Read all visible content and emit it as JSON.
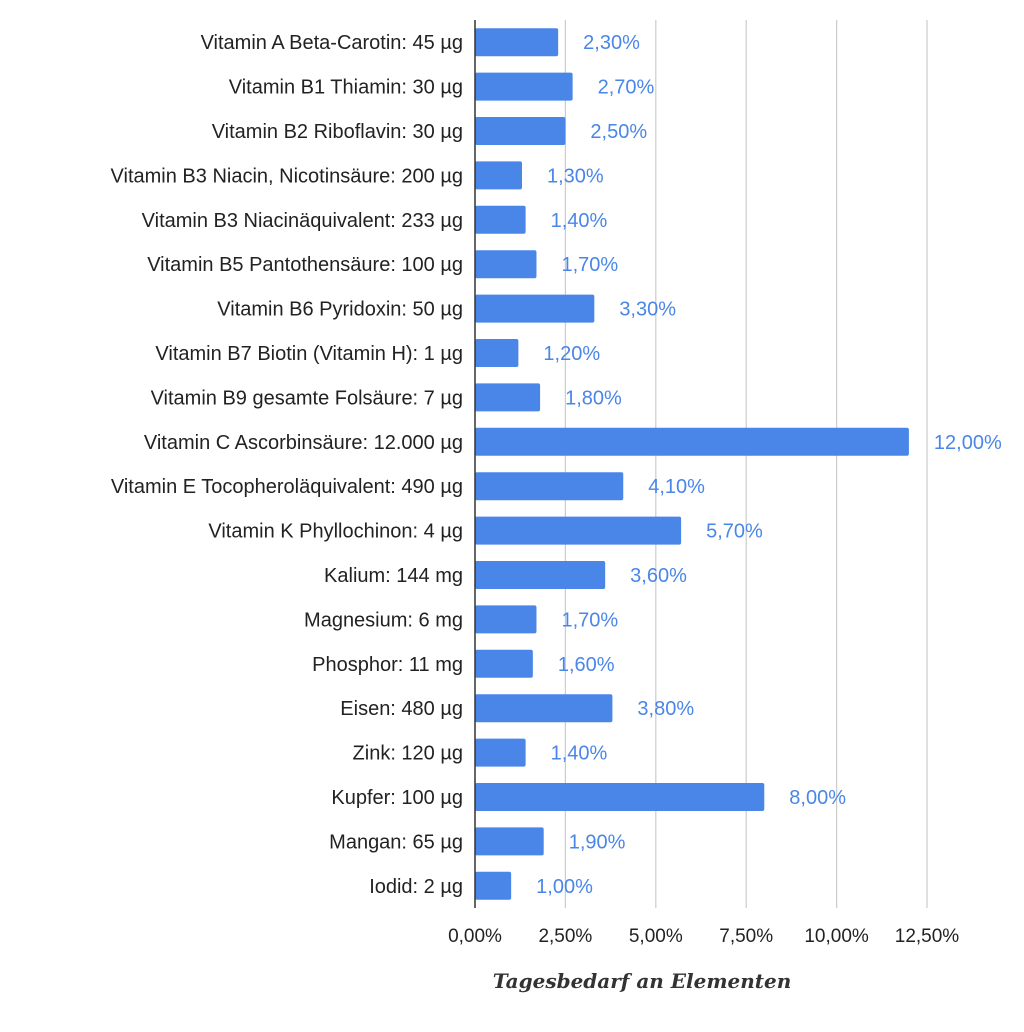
{
  "chart_data": {
    "type": "bar",
    "orientation": "horizontal",
    "categories": [
      "Vitamin A Beta-Carotin: 45 µg",
      "Vitamin B1 Thiamin: 30 µg",
      "Vitamin B2 Riboflavin: 30 µg",
      "Vitamin B3 Niacin, Nicotinsäure: 200 µg",
      "Vitamin B3 Niacinäquivalent: 233 µg",
      "Vitamin B5 Pantothensäure: 100 µg",
      "Vitamin B6 Pyridoxin: 50 µg",
      "Vitamin B7 Biotin (Vitamin H): 1 µg",
      "Vitamin B9 gesamte Folsäure: 7 µg",
      "Vitamin C Ascorbinsäure: 12.000 µg",
      "Vitamin E Tocopheroläquivalent: 490 µg",
      "Vitamin K Phyllochinon: 4 µg",
      "Kalium: 144 mg",
      "Magnesium: 6 mg",
      "Phosphor: 11 mg",
      "Eisen: 480 µg",
      "Zink: 120 µg",
      "Kupfer: 100 µg",
      "Mangan: 65 µg",
      "Iodid: 2 µg"
    ],
    "values": [
      2.3,
      2.7,
      2.5,
      1.3,
      1.4,
      1.7,
      3.3,
      1.2,
      1.8,
      12.0,
      4.1,
      5.7,
      3.6,
      1.7,
      1.6,
      3.8,
      1.4,
      8.0,
      1.9,
      1.0
    ],
    "data_labels": [
      "2,30%",
      "2,70%",
      "2,50%",
      "1,30%",
      "1,40%",
      "1,70%",
      "3,30%",
      "1,20%",
      "1,80%",
      "12,00%",
      "4,10%",
      "5,70%",
      "3,60%",
      "1,70%",
      "1,60%",
      "3,80%",
      "1,40%",
      "8,00%",
      "1,90%",
      "1,00%"
    ],
    "xticks": [
      0,
      2.5,
      5,
      7.5,
      10,
      12.5
    ],
    "xtick_labels": [
      "0,00%",
      "2,50%",
      "5,00%",
      "7,50%",
      "10,00%",
      "12,50%"
    ],
    "xlim": [
      0,
      12.5
    ],
    "xlabel": "Tagesbedarf an Elementen",
    "ylabel": "",
    "title": "",
    "grid": "vertical",
    "legend": "none",
    "bar_color": "#4a86e8",
    "label_color": "#4a86e8"
  }
}
